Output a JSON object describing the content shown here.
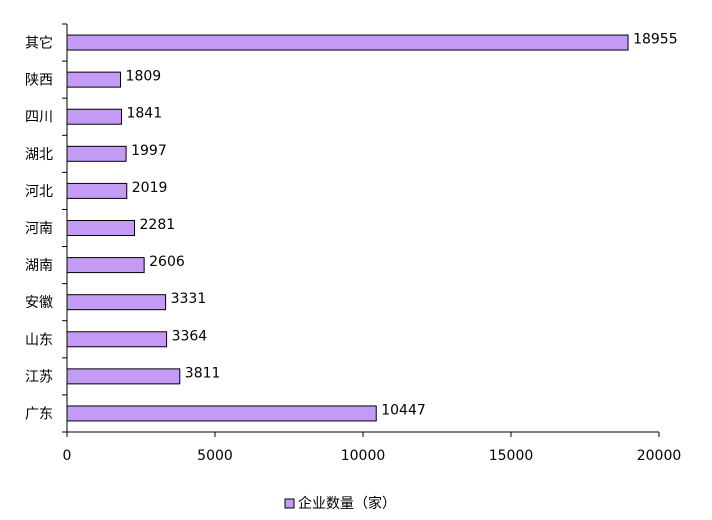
{
  "chart_data": {
    "type": "bar",
    "orientation": "horizontal",
    "categories": [
      "其它",
      "陕西",
      "四川",
      "湖北",
      "河北",
      "河南",
      "湖南",
      "安徽",
      "山东",
      "江苏",
      "广东"
    ],
    "series": [
      {
        "name": "企业数量（家）",
        "values": [
          18955,
          1809,
          1841,
          1997,
          2019,
          2281,
          2606,
          3331,
          3364,
          3811,
          10447
        ]
      }
    ],
    "xlim": [
      0,
      20000
    ],
    "xticks": [
      0,
      5000,
      10000,
      15000,
      20000
    ],
    "xtick_labels": [
      "0",
      "5000",
      "10000",
      "15000",
      "20000"
    ],
    "grid": false,
    "legend_position": "bottom",
    "colors": {
      "bar_fill": "#c39bf5",
      "bar_stroke": "#000000",
      "axis": "#000000"
    }
  }
}
